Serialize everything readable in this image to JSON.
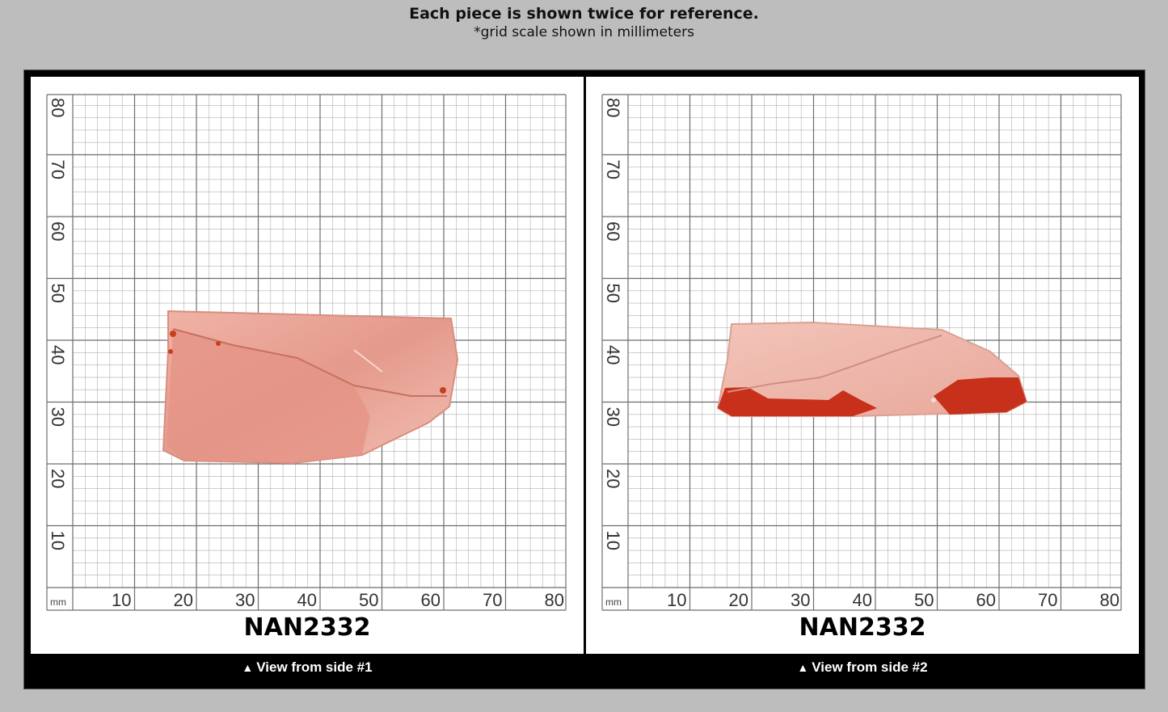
{
  "header": {
    "title": "Each piece is shown twice for reference.",
    "subtitle": "*grid scale shown in millimeters"
  },
  "panels": [
    {
      "grid": {
        "unit": "mm",
        "x_ticks": [
          "10",
          "20",
          "30",
          "40",
          "50",
          "60",
          "70",
          "80"
        ],
        "y_ticks": [
          "80",
          "70",
          "60",
          "50",
          "40",
          "30",
          "20",
          "10"
        ]
      },
      "specimen_label": "NAN2332",
      "caption_arrow": "▲",
      "caption": "View from side #1"
    },
    {
      "grid": {
        "unit": "mm",
        "x_ticks": [
          "10",
          "20",
          "30",
          "40",
          "50",
          "60",
          "70",
          "80"
        ],
        "y_ticks": [
          "80",
          "70",
          "60",
          "50",
          "40",
          "30",
          "20",
          "10"
        ]
      },
      "specimen_label": "NAN2332",
      "caption_arrow": "▲",
      "caption": "View from side #2"
    }
  ],
  "colors": {
    "background": "#bdbdbd",
    "frame": "#000000",
    "grid_major": "#6e6e6e",
    "grid_minor": "#b0b0b0",
    "crystal_pink": "#e8a498",
    "crystal_red": "#c0280f"
  }
}
